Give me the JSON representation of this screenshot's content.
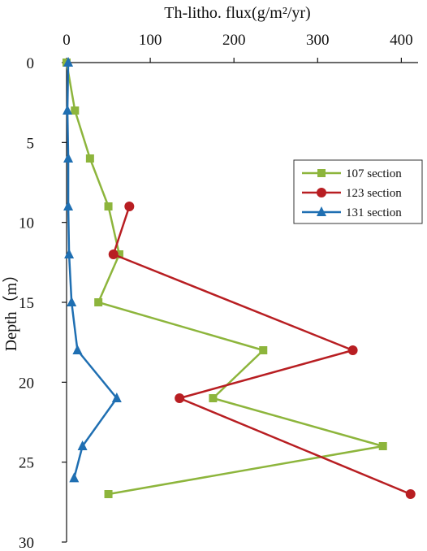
{
  "chart_data": {
    "type": "line",
    "title": "",
    "xlabel": "Th-litho. flux(g/m²/yr)",
    "ylabel": "Depth（m）",
    "x_axis_position": "top",
    "y_axis_inverted": true,
    "xlim": [
      0,
      420
    ],
    "ylim": [
      0,
      30
    ],
    "xticks": [
      0,
      100,
      200,
      300,
      400
    ],
    "yticks": [
      0,
      5,
      10,
      15,
      20,
      25,
      30
    ],
    "grid": false,
    "legend_position": "right",
    "series": [
      {
        "name": "107 section",
        "color": "#8db53c",
        "marker": "square",
        "points": [
          {
            "x": 0,
            "y": 0
          },
          {
            "x": 10,
            "y": 3
          },
          {
            "x": 28,
            "y": 6
          },
          {
            "x": 50,
            "y": 9
          },
          {
            "x": 63,
            "y": 12
          },
          {
            "x": 38,
            "y": 15
          },
          {
            "x": 235,
            "y": 18
          },
          {
            "x": 175,
            "y": 21
          },
          {
            "x": 378,
            "y": 24
          },
          {
            "x": 50,
            "y": 27
          }
        ]
      },
      {
        "name": "123 section",
        "color": "#b81e22",
        "marker": "circle",
        "points": [
          {
            "x": 75,
            "y": 9
          },
          {
            "x": 56,
            "y": 12
          },
          {
            "x": 342,
            "y": 18
          },
          {
            "x": 135,
            "y": 21
          },
          {
            "x": 411,
            "y": 27
          }
        ]
      },
      {
        "name": "131 section",
        "color": "#1f6fb2",
        "marker": "triangle",
        "points": [
          {
            "x": 2,
            "y": 0
          },
          {
            "x": 1,
            "y": 3
          },
          {
            "x": 2,
            "y": 6
          },
          {
            "x": 2,
            "y": 9
          },
          {
            "x": 3,
            "y": 12
          },
          {
            "x": 6,
            "y": 15
          },
          {
            "x": 13,
            "y": 18
          },
          {
            "x": 60,
            "y": 21
          },
          {
            "x": 19,
            "y": 24
          },
          {
            "x": 9,
            "y": 26
          }
        ]
      }
    ]
  }
}
